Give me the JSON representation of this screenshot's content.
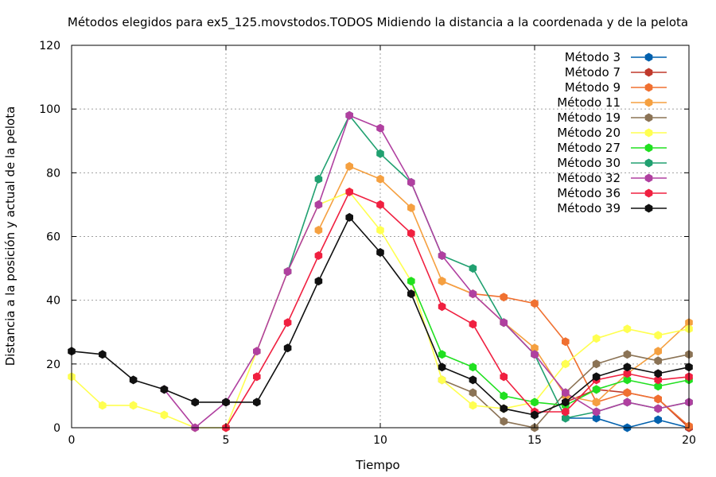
{
  "chart_data": {
    "type": "line",
    "title": "Métodos elegidos para ex5_125.movstodos.TODOS Midiendo la distancia a la coordenada y de la pelota",
    "xlabel": "Tiempo",
    "ylabel": "Distancia a la posición y actual de la pelota",
    "xlim": [
      0,
      20
    ],
    "ylim": [
      0,
      120
    ],
    "xticks": [
      "0",
      "5",
      "10",
      "15",
      "20"
    ],
    "yticks": [
      "0",
      "20",
      "40",
      "60",
      "80",
      "100",
      "120"
    ],
    "grid": true,
    "legend_position": "top-right",
    "series": [
      {
        "name": "Método 3",
        "color": "#0060ad",
        "x": [
          16,
          17,
          18,
          19,
          20
        ],
        "y": [
          3,
          3,
          0,
          2.5,
          0
        ]
      },
      {
        "name": "Método 7",
        "color": "#c0392b",
        "x": [
          16,
          17,
          18,
          19,
          20
        ],
        "y": [
          8,
          12,
          11,
          9,
          0
        ]
      },
      {
        "name": "Método 9",
        "color": "#f07030",
        "x": [
          12,
          13,
          14,
          15,
          16,
          17,
          18,
          19,
          20
        ],
        "y": [
          46,
          42,
          41,
          39,
          27,
          8,
          11,
          9,
          0.5
        ]
      },
      {
        "name": "Método 11",
        "color": "#f5a040",
        "x": [
          8,
          9,
          10,
          11,
          12,
          13,
          14,
          15,
          16,
          17,
          18,
          19,
          20
        ],
        "y": [
          62,
          82,
          78,
          69,
          46,
          42,
          33,
          25,
          10,
          8,
          17,
          24,
          33
        ]
      },
      {
        "name": "Método 19",
        "color": "#8b7355",
        "x": [
          12,
          13,
          14,
          15,
          16,
          17,
          18,
          19,
          20
        ],
        "y": [
          15,
          11,
          2,
          0,
          11,
          20,
          23,
          21,
          23
        ]
      },
      {
        "name": "Método 20",
        "color": "#ffff50",
        "x": [
          0,
          1,
          2,
          3,
          4,
          5,
          6,
          7,
          8,
          9,
          10,
          11,
          12,
          13,
          14,
          15,
          16,
          17,
          18,
          19,
          20
        ],
        "y": [
          16,
          7,
          7,
          4,
          0,
          0,
          24,
          49,
          70,
          74,
          62,
          46,
          15,
          7,
          6,
          8,
          20,
          28,
          31,
          29,
          31
        ]
      },
      {
        "name": "Método 27",
        "color": "#20e020",
        "x": [
          11,
          12,
          13,
          14,
          15,
          16,
          17,
          18,
          19,
          20
        ],
        "y": [
          46,
          23,
          19,
          10,
          8,
          7,
          12,
          15,
          13,
          15
        ]
      },
      {
        "name": "Método 30",
        "color": "#20a070",
        "x": [
          7,
          8,
          9,
          10,
          11,
          12,
          13,
          14,
          15,
          16,
          17,
          18,
          19,
          20
        ],
        "y": [
          49,
          78,
          98,
          86,
          77,
          54,
          50,
          33,
          23,
          3,
          5,
          8,
          6,
          8
        ]
      },
      {
        "name": "Método 32",
        "color": "#b040a0",
        "x": [
          3,
          4,
          5,
          6,
          7,
          8,
          9,
          10,
          11,
          12,
          13,
          14,
          15,
          16,
          17,
          18,
          19,
          20
        ],
        "y": [
          12,
          0,
          8,
          24,
          49,
          70,
          98,
          94,
          77,
          54,
          42,
          33,
          23,
          11,
          5,
          8,
          6,
          8
        ]
      },
      {
        "name": "Método 36",
        "color": "#f02040",
        "x": [
          5,
          6,
          7,
          8,
          9,
          10,
          11,
          12,
          13,
          14,
          15,
          16,
          17,
          18,
          19,
          20
        ],
        "y": [
          0,
          16,
          33,
          54,
          74,
          70,
          61,
          38,
          32.5,
          16,
          5,
          5,
          15,
          17,
          15,
          16
        ]
      },
      {
        "name": "Método 39",
        "color": "#101010",
        "x": [
          0,
          1,
          2,
          3,
          4,
          5,
          6,
          7,
          8,
          9,
          10,
          11,
          12,
          13,
          14,
          15,
          16,
          17,
          18,
          19,
          20
        ],
        "y": [
          24,
          23,
          15,
          12,
          8,
          8,
          8,
          25,
          46,
          66,
          55,
          42,
          19,
          15,
          6,
          4,
          8,
          16,
          19,
          17,
          19
        ]
      }
    ]
  }
}
